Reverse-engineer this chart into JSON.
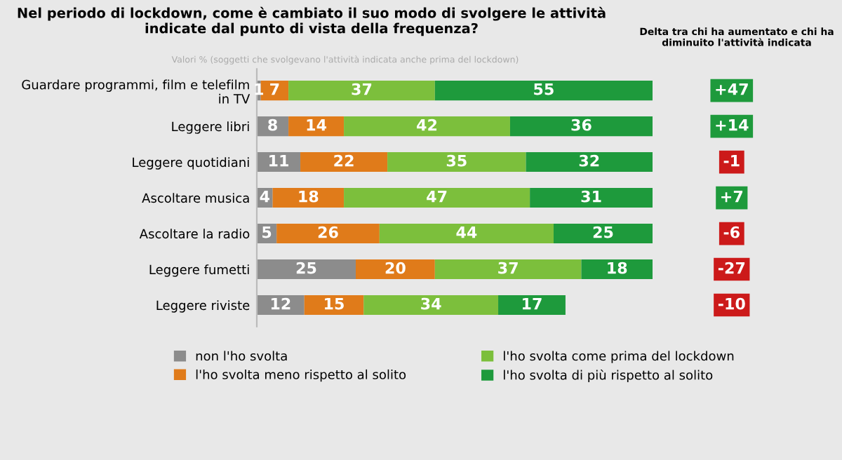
{
  "chart_data": {
    "type": "bar",
    "orientation": "horizontal",
    "stacked": true,
    "data_labels": true,
    "title": "Nel periodo di lockdown, come è cambiato il suo modo di svolgere le attività indicate dal punto di vista della frequenza?",
    "subtitle": "Valori % (soggetti che svolgevano l'attività indicata anche prima del lockdown)",
    "categories": [
      "Guardare programmi, film e telefilm\nin TV",
      "Leggere libri",
      "Leggere quotidiani",
      "Ascoltare musica",
      "Ascoltare la radio",
      "Leggere fumetti",
      "Leggere riviste"
    ],
    "series": [
      {
        "name": "non l'ho svolta",
        "color": "#8c8c8c",
        "values": [
          1,
          8,
          11,
          4,
          5,
          25,
          12
        ]
      },
      {
        "name": "l'ho svolta meno rispetto al solito",
        "color": "#e07b1a",
        "values": [
          7,
          14,
          22,
          18,
          26,
          20,
          15
        ]
      },
      {
        "name": "l'ho svolta come prima del lockdown",
        "color": "#7cbf3c",
        "values": [
          37,
          42,
          35,
          47,
          44,
          37,
          34
        ]
      },
      {
        "name": "l'ho svolta di più rispetto al solito",
        "color": "#1e9a3c",
        "values": [
          55,
          36,
          32,
          31,
          25,
          18,
          17
        ]
      }
    ],
    "annotations": [
      "Delta tra chi ha aumentato e chi ha diminuito l'attività indicata",
      "+47",
      "+14",
      "-1",
      "+7",
      "-6",
      "-27",
      "-10"
    ],
    "legend": "bottom",
    "grid": false
  }
}
